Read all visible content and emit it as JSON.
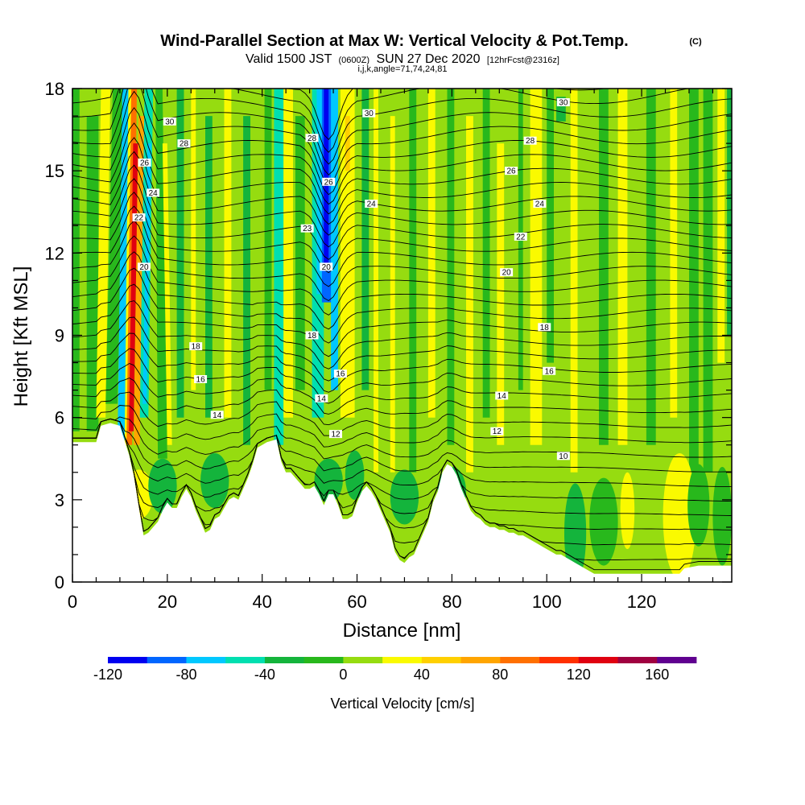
{
  "chart_data": {
    "type": "heatmap",
    "title": "Wind-Parallel Section at Max W: Vertical Velocity & Pot.Temp.",
    "title_mark": "(C)",
    "subtitle_pre": "Valid 1500 JST",
    "subtitle_small1": "(0600Z)",
    "subtitle_mid": "SUN 27 Dec 2020",
    "subtitle_small2": "[12hrFcst@2316z]",
    "subtitle2": "i,j,k,angle=71,74,24,81",
    "xlabel": "Distance [nm]",
    "ylabel": "Height [Kft MSL]",
    "xlim": [
      0,
      139
    ],
    "ylim": [
      0,
      18
    ],
    "x_ticks": [
      0,
      20,
      40,
      60,
      80,
      100,
      120
    ],
    "x_tick_labels": [
      "0",
      "20",
      "40",
      "60",
      "80",
      "100",
      "120"
    ],
    "y_ticks": [
      0,
      3,
      6,
      9,
      12,
      15,
      18
    ],
    "y_tick_labels": [
      "0",
      "3",
      "6",
      "9",
      "12",
      "15",
      "18"
    ],
    "colorbar": {
      "label": "Vertical Velocity [cm/s]",
      "min": -120,
      "max": 180,
      "step": 20,
      "tick_values": [
        -120,
        -80,
        -40,
        0,
        40,
        80,
        120,
        160
      ],
      "tick_labels": [
        "-120",
        "-80",
        "-40",
        "0",
        "40",
        "80",
        "120",
        "160"
      ],
      "colors": [
        "#0000f0",
        "#0066ff",
        "#00c8ff",
        "#00dfb0",
        "#14b43c",
        "#28b81c",
        "#96dc10",
        "#fafa00",
        "#ffd000",
        "#ffa500",
        "#ff7000",
        "#ff3000",
        "#e00010",
        "#a00040",
        "#600090"
      ]
    },
    "terrain_kft": [
      [
        0,
        5.1
      ],
      [
        5,
        5.1
      ],
      [
        6,
        5.7
      ],
      [
        8,
        5.8
      ],
      [
        10,
        5.7
      ],
      [
        12,
        4.6
      ],
      [
        13,
        3.8
      ],
      [
        14,
        2.7
      ],
      [
        15,
        1.7
      ],
      [
        16,
        1.8
      ],
      [
        17,
        2.0
      ],
      [
        18,
        2.2
      ],
      [
        19,
        2.6
      ],
      [
        20,
        2.9
      ],
      [
        21,
        2.7
      ],
      [
        22,
        2.7
      ],
      [
        23,
        3.1
      ],
      [
        24,
        3.4
      ],
      [
        25,
        3.1
      ],
      [
        26,
        2.6
      ],
      [
        27,
        2.2
      ],
      [
        28,
        1.8
      ],
      [
        29,
        1.9
      ],
      [
        30,
        2.3
      ],
      [
        31,
        2.4
      ],
      [
        32,
        2.7
      ],
      [
        33,
        3.0
      ],
      [
        34,
        3.1
      ],
      [
        35,
        3.0
      ],
      [
        36,
        3.4
      ],
      [
        37,
        3.8
      ],
      [
        38,
        4.3
      ],
      [
        39,
        4.9
      ],
      [
        40,
        5.0
      ],
      [
        41,
        5.1
      ],
      [
        43,
        5.2
      ],
      [
        44,
        4.4
      ],
      [
        45,
        4.0
      ],
      [
        46,
        4.0
      ],
      [
        47,
        3.8
      ],
      [
        48,
        3.6
      ],
      [
        49,
        3.4
      ],
      [
        50,
        3.4
      ],
      [
        51,
        3.5
      ],
      [
        52,
        3.2
      ],
      [
        53,
        2.8
      ],
      [
        54,
        3.2
      ],
      [
        55,
        3.2
      ],
      [
        56,
        2.8
      ],
      [
        57,
        2.3
      ],
      [
        58,
        2.3
      ],
      [
        59,
        2.4
      ],
      [
        60,
        2.9
      ],
      [
        61,
        3.3
      ],
      [
        62,
        3.5
      ],
      [
        63,
        3.3
      ],
      [
        64,
        3.0
      ],
      [
        65,
        2.6
      ],
      [
        66,
        2.2
      ],
      [
        67,
        1.8
      ],
      [
        68,
        1.1
      ],
      [
        69,
        0.8
      ],
      [
        70,
        0.7
      ],
      [
        71,
        0.9
      ],
      [
        72,
        1.0
      ],
      [
        73,
        1.4
      ],
      [
        74,
        1.8
      ],
      [
        75,
        2.2
      ],
      [
        76,
        2.9
      ],
      [
        77,
        3.3
      ],
      [
        78,
        4.0
      ],
      [
        79,
        4.3
      ],
      [
        80,
        4.2
      ],
      [
        81,
        3.9
      ],
      [
        82,
        3.4
      ],
      [
        83,
        3.0
      ],
      [
        84,
        2.6
      ],
      [
        85,
        2.4
      ],
      [
        86,
        2.3
      ],
      [
        87,
        2.1
      ],
      [
        88,
        2.0
      ],
      [
        89,
        2.0
      ],
      [
        90,
        1.9
      ],
      [
        91,
        1.9
      ],
      [
        92,
        1.8
      ],
      [
        93,
        1.8
      ],
      [
        94,
        1.7
      ],
      [
        95,
        1.7
      ],
      [
        96,
        1.6
      ],
      [
        97,
        1.5
      ],
      [
        98,
        1.4
      ],
      [
        99,
        1.3
      ],
      [
        100,
        1.2
      ],
      [
        101,
        1.1
      ],
      [
        102,
        1.0
      ],
      [
        103,
        1.0
      ],
      [
        104,
        0.9
      ],
      [
        105,
        0.8
      ],
      [
        106,
        0.7
      ],
      [
        107,
        0.6
      ],
      [
        108,
        0.5
      ],
      [
        109,
        0.4
      ],
      [
        110,
        0.3
      ],
      [
        128,
        0.3
      ],
      [
        129,
        0.5
      ],
      [
        132,
        0.6
      ],
      [
        139,
        0.6
      ]
    ],
    "isentrope_labels": [
      {
        "text": "30",
        "x": 20.5,
        "y": 16.8
      },
      {
        "text": "28",
        "x": 23.5,
        "y": 16.0
      },
      {
        "text": "26",
        "x": 15.2,
        "y": 15.3
      },
      {
        "text": "24",
        "x": 17.0,
        "y": 14.2
      },
      {
        "text": "22",
        "x": 14.0,
        "y": 13.3
      },
      {
        "text": "20",
        "x": 15.1,
        "y": 11.5
      },
      {
        "text": "18",
        "x": 26.0,
        "y": 8.6
      },
      {
        "text": "16",
        "x": 27.0,
        "y": 7.4
      },
      {
        "text": "14",
        "x": 30.5,
        "y": 6.1
      },
      {
        "text": "28",
        "x": 50.5,
        "y": 16.2
      },
      {
        "text": "26",
        "x": 54.0,
        "y": 14.6
      },
      {
        "text": "23",
        "x": 49.5,
        "y": 12.9
      },
      {
        "text": "20",
        "x": 53.5,
        "y": 11.5
      },
      {
        "text": "18",
        "x": 50.5,
        "y": 9.0
      },
      {
        "text": "16",
        "x": 56.5,
        "y": 7.6
      },
      {
        "text": "14",
        "x": 52.5,
        "y": 6.7
      },
      {
        "text": "12",
        "x": 55.5,
        "y": 5.4
      },
      {
        "text": "30",
        "x": 62.5,
        "y": 17.1
      },
      {
        "text": "24",
        "x": 63.0,
        "y": 13.8
      },
      {
        "text": "30",
        "x": 103.5,
        "y": 17.5
      },
      {
        "text": "28",
        "x": 96.5,
        "y": 16.1
      },
      {
        "text": "26",
        "x": 92.5,
        "y": 15.0
      },
      {
        "text": "24",
        "x": 98.5,
        "y": 13.8
      },
      {
        "text": "22",
        "x": 94.5,
        "y": 12.6
      },
      {
        "text": "20",
        "x": 91.5,
        "y": 11.3
      },
      {
        "text": "18",
        "x": 99.5,
        "y": 9.3
      },
      {
        "text": "16",
        "x": 100.5,
        "y": 7.7
      },
      {
        "text": "14",
        "x": 90.5,
        "y": 6.8
      },
      {
        "text": "12",
        "x": 89.5,
        "y": 5.5
      },
      {
        "text": "10",
        "x": 103.5,
        "y": 4.6
      }
    ]
  }
}
